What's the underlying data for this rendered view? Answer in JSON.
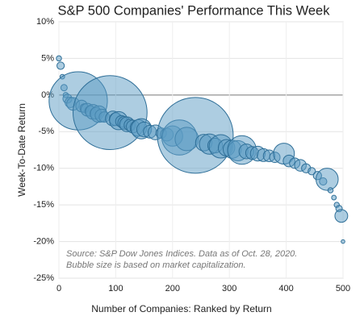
{
  "chart_data": {
    "type": "bubble",
    "title": "S&P 500 Companies' Performance This Week",
    "x_label": "Number of Companies: Ranked by Return",
    "y_label": "Week-To-Date Return",
    "annotations": [
      "Source: S&P Dow Jones Indices. Data as of Oct. 28, 2020.",
      "Bubble size is based on market capitalization."
    ],
    "x": [
      0,
      3,
      6,
      9,
      12,
      15,
      20,
      25,
      34,
      40,
      45,
      50,
      55,
      60,
      65,
      70,
      75,
      80,
      90,
      95,
      100,
      105,
      110,
      115,
      120,
      125,
      130,
      140,
      145,
      150,
      160,
      170,
      180,
      190,
      200,
      212,
      225,
      240,
      255,
      265,
      275,
      285,
      295,
      305,
      315,
      322,
      330,
      340,
      350,
      360,
      370,
      380,
      396,
      405,
      415,
      425,
      435,
      445,
      455,
      465,
      472,
      478,
      484,
      489,
      493,
      497,
      500
    ],
    "values": [
      5,
      4,
      2.5,
      1,
      0,
      -0.5,
      -1,
      -1.2,
      -0.8,
      -1.5,
      -1.8,
      -2,
      -2.2,
      -2.3,
      -2.5,
      -2.6,
      -2.8,
      -3,
      -2.4,
      -3.2,
      -3.3,
      -3.5,
      -3.6,
      -3.8,
      -4,
      -4.1,
      -4.3,
      -4.5,
      -4.6,
      -4.7,
      -5,
      -5.1,
      -5.2,
      -5.4,
      -5.6,
      -5.8,
      -6,
      -5.5,
      -6.5,
      -6.7,
      -6.9,
      -7,
      -7.2,
      -7.4,
      -7.6,
      -7.5,
      -7.7,
      -7.9,
      -8,
      -8.2,
      -8.3,
      -8.5,
      -8,
      -9,
      -9.3,
      -9.6,
      -10,
      -10.4,
      -11,
      -11.8,
      -11.5,
      -13,
      -14,
      -15,
      -15.5,
      -16.5,
      -20
    ],
    "sizes": [
      10,
      20,
      8,
      15,
      10,
      30,
      40,
      60,
      1240,
      50,
      30,
      60,
      40,
      80,
      50,
      100,
      60,
      40,
      2000,
      80,
      60,
      120,
      50,
      60,
      80,
      50,
      60,
      100,
      150,
      80,
      60,
      80,
      40,
      60,
      150,
      450,
      200,
      2100,
      100,
      150,
      80,
      200,
      100,
      120,
      150,
      300,
      80,
      60,
      80,
      60,
      50,
      40,
      160,
      50,
      40,
      50,
      30,
      20,
      25,
      20,
      180,
      10,
      8,
      10,
      15,
      60,
      5
    ],
    "color": "#5b9bc3",
    "xlim": [
      0,
      500
    ],
    "xticks": [
      0,
      100,
      200,
      300,
      400,
      500
    ],
    "ylim": [
      -25,
      10
    ],
    "yticks": [
      {
        "value": 10,
        "label": "10%"
      },
      {
        "value": 5,
        "label": "5%"
      },
      {
        "value": 0,
        "label": "0%"
      },
      {
        "value": -5,
        "label": "-5%"
      },
      {
        "value": -10,
        "label": "-10%"
      },
      {
        "value": -15,
        "label": "-15%"
      },
      {
        "value": -20,
        "label": "-20%"
      },
      {
        "value": -25,
        "label": "-25%"
      }
    ],
    "grid": true
  }
}
